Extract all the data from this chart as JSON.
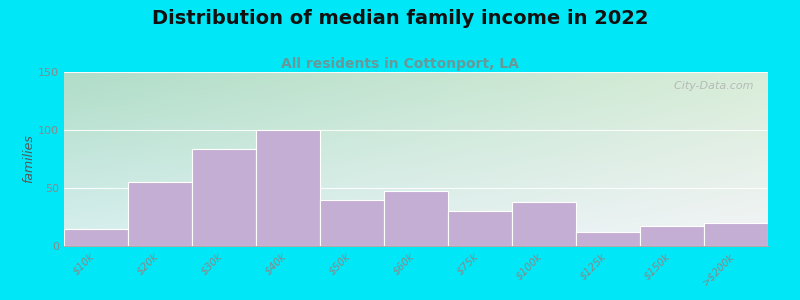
{
  "title": "Distribution of median family income in 2022",
  "subtitle": "All residents in Cottonport, LA",
  "ylabel": "families",
  "categories": [
    "$10k",
    "$20k",
    "$30k",
    "$40k",
    "$50k",
    "$60k",
    "$75k",
    "$100k",
    "$125k",
    "$150k",
    ">$200k"
  ],
  "values": [
    15,
    55,
    84,
    100,
    40,
    47,
    30,
    38,
    12,
    17,
    20
  ],
  "bar_color": "#c4aed4",
  "ylim": [
    0,
    150
  ],
  "yticks": [
    0,
    50,
    100,
    150
  ],
  "background_outer": "#00e8f8",
  "gradient_top_left": "#b8e8d0",
  "gradient_top_right": "#d8eed8",
  "gradient_bottom": "#f0f0ff",
  "title_fontsize": 14,
  "subtitle_fontsize": 10,
  "ylabel_fontsize": 9,
  "watermark": "  City-Data.com",
  "tick_label_color": "#888888",
  "ylabel_color": "#555555",
  "subtitle_color": "#669999",
  "title_color": "#111111"
}
